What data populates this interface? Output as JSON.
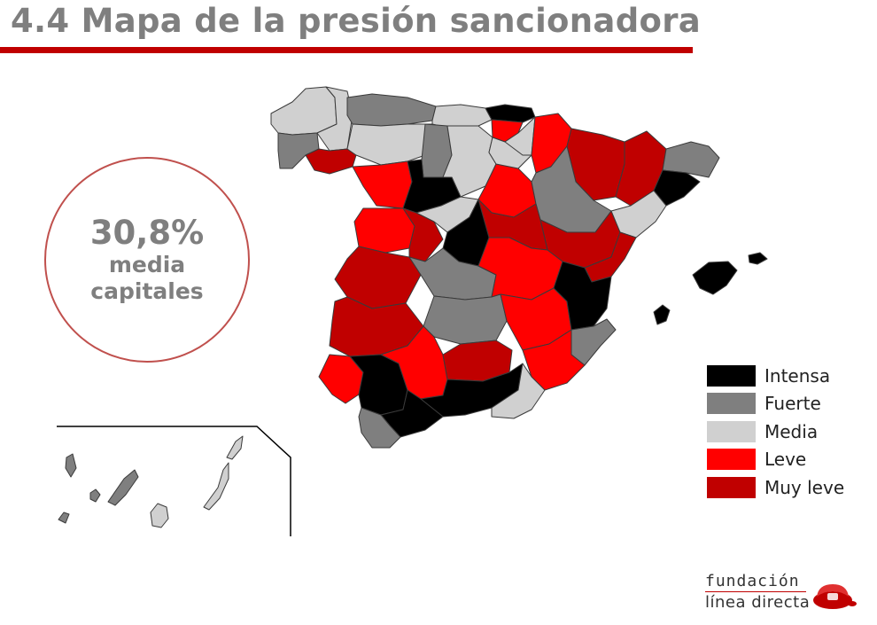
{
  "header": {
    "title": "4.4 Mapa de la presión sancionadora"
  },
  "stat": {
    "value": "30,8%",
    "line1": "media",
    "line2": "capitales"
  },
  "legend": [
    {
      "key": "intensa",
      "label": "Intensa",
      "color": "#000000"
    },
    {
      "key": "fuerte",
      "label": "Fuerte",
      "color": "#7f7f7f"
    },
    {
      "key": "media",
      "label": "Media",
      "color": "#d0d0d0"
    },
    {
      "key": "leve",
      "label": "Leve",
      "color": "#ff0000"
    },
    {
      "key": "muyleve",
      "label": "Muy leve",
      "color": "#c00000"
    }
  ],
  "logo": {
    "line1": "fundación",
    "line2": "línea directa"
  }
}
